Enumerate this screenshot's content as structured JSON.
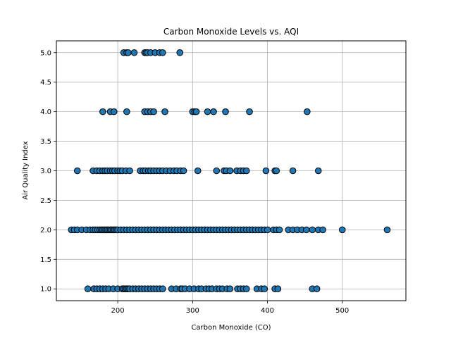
{
  "chart_data": {
    "type": "scatter",
    "title": "Carbon Monoxide Levels vs. AQI",
    "xlabel": "Carbon Monoxide (CO)",
    "ylabel": "Air Quality Index",
    "xlim": [
      118,
      585
    ],
    "ylim": [
      0.8,
      5.2
    ],
    "xticks": [
      200,
      300,
      400,
      500
    ],
    "yticks": [
      1.0,
      1.5,
      2.0,
      2.5,
      3.0,
      3.5,
      4.0,
      4.5,
      5.0
    ],
    "grid": true,
    "marker_color": "#1f77b4",
    "marker_edge": "#000000",
    "points": [
      {
        "aqi": 5,
        "co": [
          208,
          212,
          214,
          222,
          236,
          238,
          240,
          244,
          250,
          256,
          260,
          283
        ]
      },
      {
        "aqi": 4,
        "co": [
          180,
          190,
          195,
          212,
          236,
          240,
          244,
          248,
          263,
          300,
          303,
          305,
          320,
          328,
          344,
          376,
          453
        ]
      },
      {
        "aqi": 3,
        "co": [
          146,
          167,
          172,
          176,
          180,
          183,
          186,
          190,
          193,
          196,
          200,
          203,
          206,
          211,
          216,
          230,
          234,
          237,
          241,
          244,
          248,
          252,
          256,
          260,
          265,
          270,
          275,
          279,
          284,
          288,
          307,
          332,
          342,
          345,
          350,
          359,
          364,
          368,
          372,
          398,
          410,
          412,
          434,
          468
        ]
      },
      {
        "aqi": 2,
        "co": [
          138,
          142,
          146,
          152,
          158,
          163,
          167,
          170,
          173,
          176,
          178,
          180,
          182,
          184,
          186,
          188,
          190,
          192,
          194,
          196,
          198,
          200,
          204,
          208,
          212,
          216,
          220,
          224,
          228,
          232,
          236,
          240,
          244,
          248,
          252,
          256,
          260,
          264,
          268,
          272,
          276,
          280,
          284,
          288,
          292,
          296,
          300,
          304,
          308,
          312,
          316,
          320,
          324,
          328,
          332,
          336,
          340,
          344,
          348,
          352,
          356,
          360,
          364,
          368,
          372,
          376,
          380,
          384,
          388,
          392,
          396,
          400,
          408,
          412,
          416,
          428,
          434,
          440,
          446,
          452,
          460,
          468,
          474,
          500,
          560
        ]
      },
      {
        "aqi": 1,
        "co": [
          160,
          168,
          172,
          176,
          180,
          184,
          188,
          194,
          200,
          206,
          208,
          210,
          212,
          214,
          216,
          220,
          224,
          228,
          232,
          236,
          240,
          244,
          248,
          252,
          256,
          260,
          272,
          278,
          284,
          286,
          290,
          296,
          302,
          308,
          312,
          318,
          322,
          326,
          332,
          336,
          340,
          346,
          350,
          360,
          364,
          368,
          372,
          386,
          392,
          396,
          410,
          414,
          460,
          466
        ]
      }
    ]
  }
}
